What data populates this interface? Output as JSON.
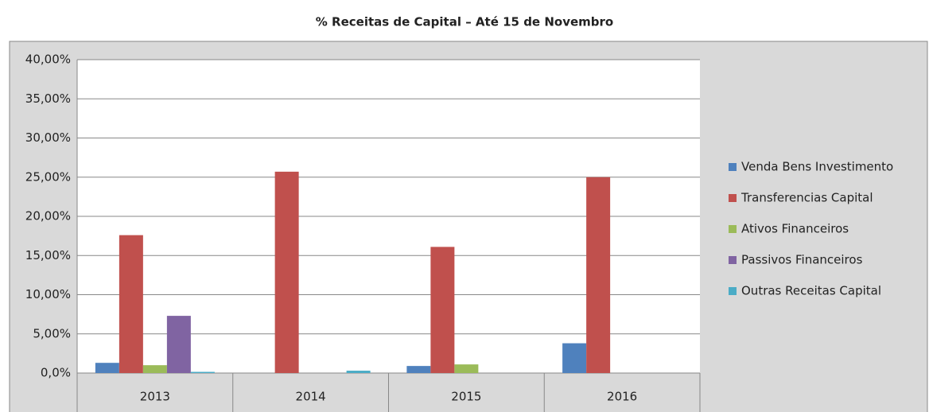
{
  "chart_data": {
    "type": "bar",
    "title": "% Receitas de Capital – Até 15 de Novembro",
    "categories": [
      "2013",
      "2014",
      "2015",
      "2016"
    ],
    "series": [
      {
        "name": "Venda Bens Investimento",
        "color": "#4f81bd",
        "values": [
          1.3,
          0,
          0.9,
          3.8
        ]
      },
      {
        "name": "Transferencias Capital",
        "color": "#c0504d",
        "values": [
          17.6,
          25.7,
          16.1,
          25.0
        ]
      },
      {
        "name": "Ativos Financeiros",
        "color": "#9bbb59",
        "values": [
          1.0,
          0,
          1.1,
          0
        ]
      },
      {
        "name": "Passivos Financeiros",
        "color": "#8064a2",
        "values": [
          7.3,
          0,
          0,
          0
        ]
      },
      {
        "name": "Outras Receitas Capital",
        "color": "#4bacc6",
        "values": [
          0.15,
          0.3,
          0,
          0
        ]
      }
    ],
    "ylim": [
      0,
      40
    ],
    "yticks": [
      {
        "value": 0,
        "label": "0,0%"
      },
      {
        "value": 5,
        "label": "5,00%"
      },
      {
        "value": 10,
        "label": "10,00%"
      },
      {
        "value": 15,
        "label": "15,00%"
      },
      {
        "value": 20,
        "label": "20,00%"
      },
      {
        "value": 25,
        "label": "25,00%"
      },
      {
        "value": 30,
        "label": "30,00%"
      },
      {
        "value": 35,
        "label": "35,00%"
      },
      {
        "value": 40,
        "label": "40,00%"
      }
    ],
    "grid": true,
    "legend": "right"
  }
}
